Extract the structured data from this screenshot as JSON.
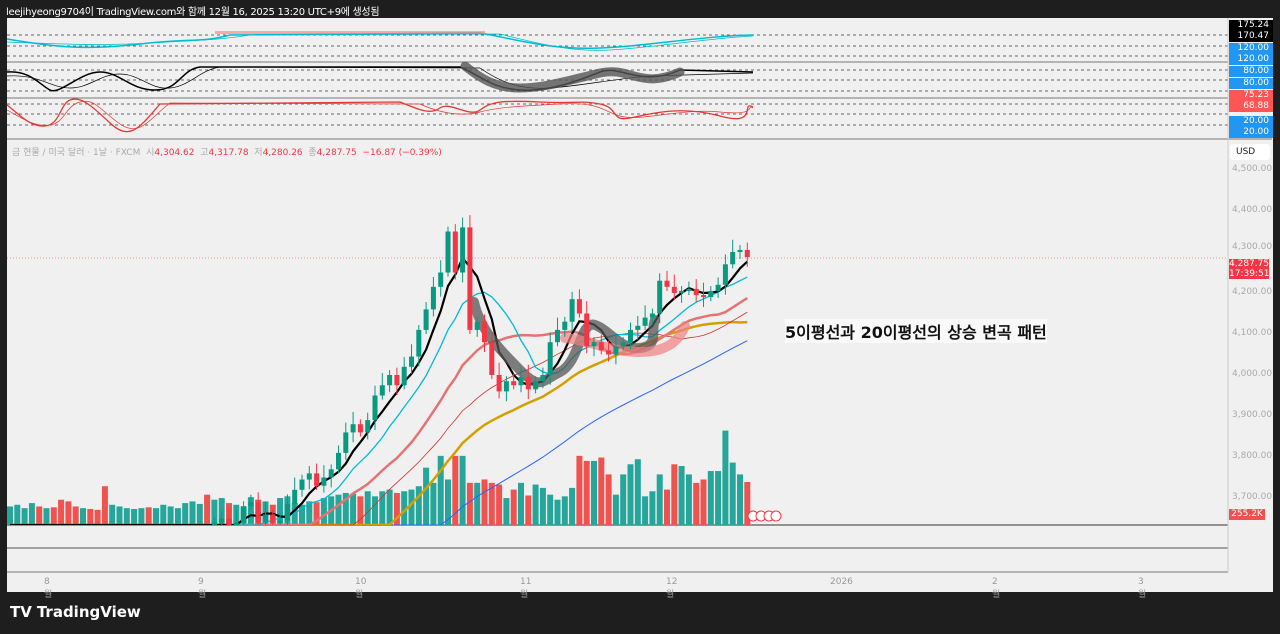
{
  "header": {
    "title": "leejihyeong9704이 TradingView.com와 함께 12월 16, 2025 13:20 UTC+9에 생성됨"
  },
  "legend": {
    "symbol": "금 현물 / 미국 달러 · 1날 · FXCM",
    "o_label": "시",
    "o": "4,304.62",
    "h_label": "고",
    "h": "4,317.78",
    "l_label": "저",
    "l": "4,280.26",
    "c_label": "종",
    "c": "4,287.75",
    "change": "−16.87 (−0.39%)"
  },
  "oscillator_labels": {
    "p1a": "175.24",
    "p1b": "170.47",
    "p1c": "120.00",
    "p1d": "120.00",
    "p2a": "80.00",
    "p2b": "80.00",
    "p3a": "75.23",
    "p3b": "68.88",
    "p3c": "20.00",
    "p3d": "20.00"
  },
  "price_axis": {
    "currency": "USD",
    "ticks": [
      "4,500.00",
      "4,400.00",
      "4,300.00",
      "4,200.00",
      "4,100.00",
      "4,000.00",
      "3,900.00",
      "3,800.00",
      "3,700.00"
    ],
    "last_price": "4,287.75",
    "countdown": "17:39:51",
    "volume_last": "255.2K"
  },
  "time_axis": {
    "ticks": [
      "8월",
      "9월",
      "10월",
      "11월",
      "12월",
      "2026",
      "2월",
      "3월"
    ]
  },
  "annotation": "5이평선과 20이평선의 상승 변곡 패턴",
  "footer": {
    "brand": "TradingView"
  },
  "colors": {
    "up": "#089981",
    "down": "#f23645",
    "vol_up": "#26a69a",
    "vol_down": "#ef5350",
    "ma5": "#000000",
    "ma10": "#00bcd4",
    "ma20": "#e57373",
    "ma60": "#d4a000",
    "ma120": "#2962ff"
  },
  "chart_data": {
    "type": "candlestick",
    "title": "금 현물 / 미국 달러 · 1날 · FXCM",
    "ylim": [
      3650,
      4560
    ],
    "yticks": [
      3700,
      3800,
      3900,
      4000,
      4100,
      4200,
      4300,
      4400,
      4500
    ],
    "closes": [
      3290,
      3350,
      3360,
      3395,
      3380,
      3400,
      3395,
      3350,
      3345,
      3335,
      3355,
      3340,
      3330,
      3320,
      3340,
      3345,
      3370,
      3375,
      3385,
      3370,
      3390,
      3415,
      3450,
      3480,
      3530,
      3545,
      3590,
      3585,
      3640,
      3650,
      3630,
      3640,
      3680,
      3690,
      3640,
      3660,
      3640,
      3645,
      3685,
      3720,
      3745,
      3760,
      3730,
      3750,
      3770,
      3810,
      3860,
      3880,
      3860,
      3890,
      3950,
      3975,
      4000,
      3975,
      4020,
      4045,
      4110,
      4160,
      4215,
      4250,
      4350,
      4250,
      4360,
      4110,
      4130,
      4080,
      4000,
      3960,
      3985,
      3975,
      3995,
      3965,
      3985,
      4000,
      4080,
      4110,
      4130,
      4185,
      4150,
      4070,
      4080,
      4060,
      4050,
      4070,
      4080,
      4110,
      4120,
      4140,
      4150,
      4230,
      4215,
      4200,
      4205,
      4210,
      4195,
      4190,
      4205,
      4220,
      4270,
      4300,
      4305,
      4287.75
    ],
    "volumes_k": [
      110,
      120,
      100,
      130,
      110,
      100,
      105,
      150,
      140,
      110,
      100,
      95,
      90,
      230,
      120,
      110,
      100,
      95,
      100,
      105,
      100,
      120,
      110,
      100,
      130,
      140,
      125,
      180,
      150,
      160,
      130,
      120,
      110,
      165,
      150,
      140,
      120,
      160,
      170,
      130,
      120,
      140,
      135,
      160,
      170,
      180,
      190,
      185,
      170,
      200,
      170,
      200,
      210,
      190,
      200,
      210,
      230,
      340,
      250,
      410,
      270,
      410,
      410,
      250,
      250,
      270,
      250,
      240,
      160,
      210,
      250,
      175,
      240,
      220,
      180,
      150,
      170,
      220,
      410,
      380,
      380,
      400,
      300,
      180,
      300,
      360,
      390,
      170,
      200,
      300,
      210,
      360,
      350,
      300,
      250,
      270,
      320,
      320,
      560,
      370,
      300,
      255.2
    ],
    "moving_averages": [
      "MA5",
      "MA10",
      "MA20",
      "MA60",
      "MA120"
    ],
    "x_start_label": "late July 2025"
  }
}
